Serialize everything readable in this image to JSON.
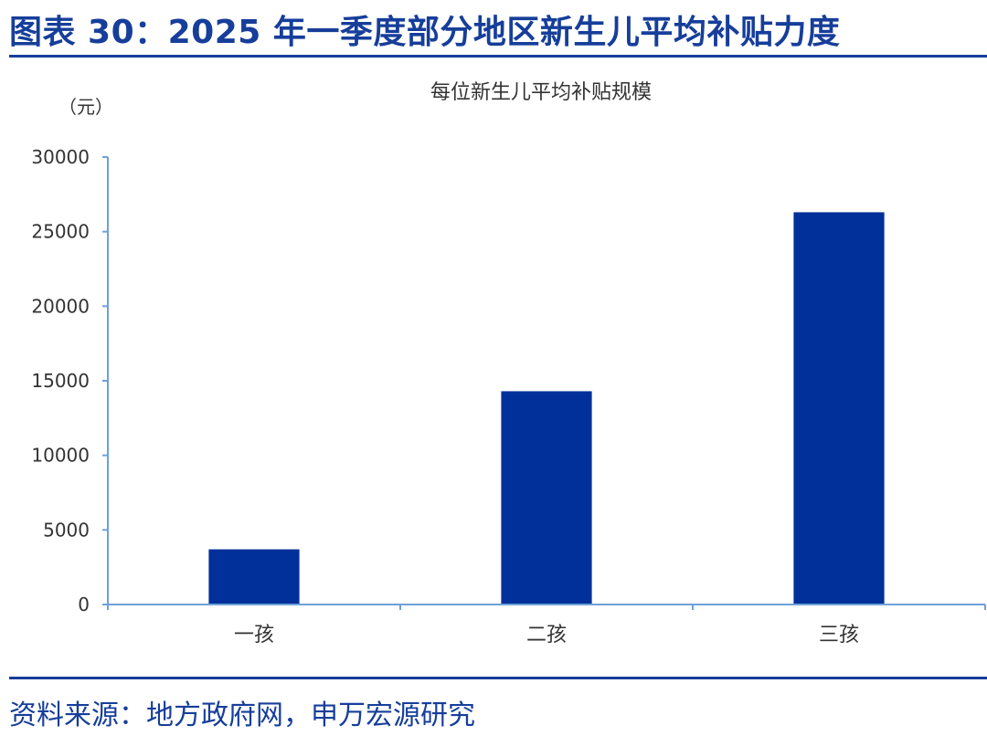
{
  "figure_title": "图表 30：2025 年一季度部分地区新生儿平均补贴力度",
  "source_text": "资料来源：地方政府网，申万宏源研究",
  "colors": {
    "accent": "#163E9A",
    "bar": "#02309A",
    "axis": "#6FA0D8",
    "text": "#333333"
  },
  "chart_data": {
    "type": "bar",
    "title": "每位新生儿平均补贴规模",
    "unit_label": "（元）",
    "categories": [
      "一孩",
      "二孩",
      "三孩"
    ],
    "series": [
      {
        "values": [
          3700,
          14300,
          26300
        ]
      }
    ],
    "ylim": [
      0,
      30000
    ],
    "yticks": [
      0,
      5000,
      10000,
      15000,
      20000,
      25000,
      30000
    ],
    "grid": false,
    "legend": "none"
  }
}
